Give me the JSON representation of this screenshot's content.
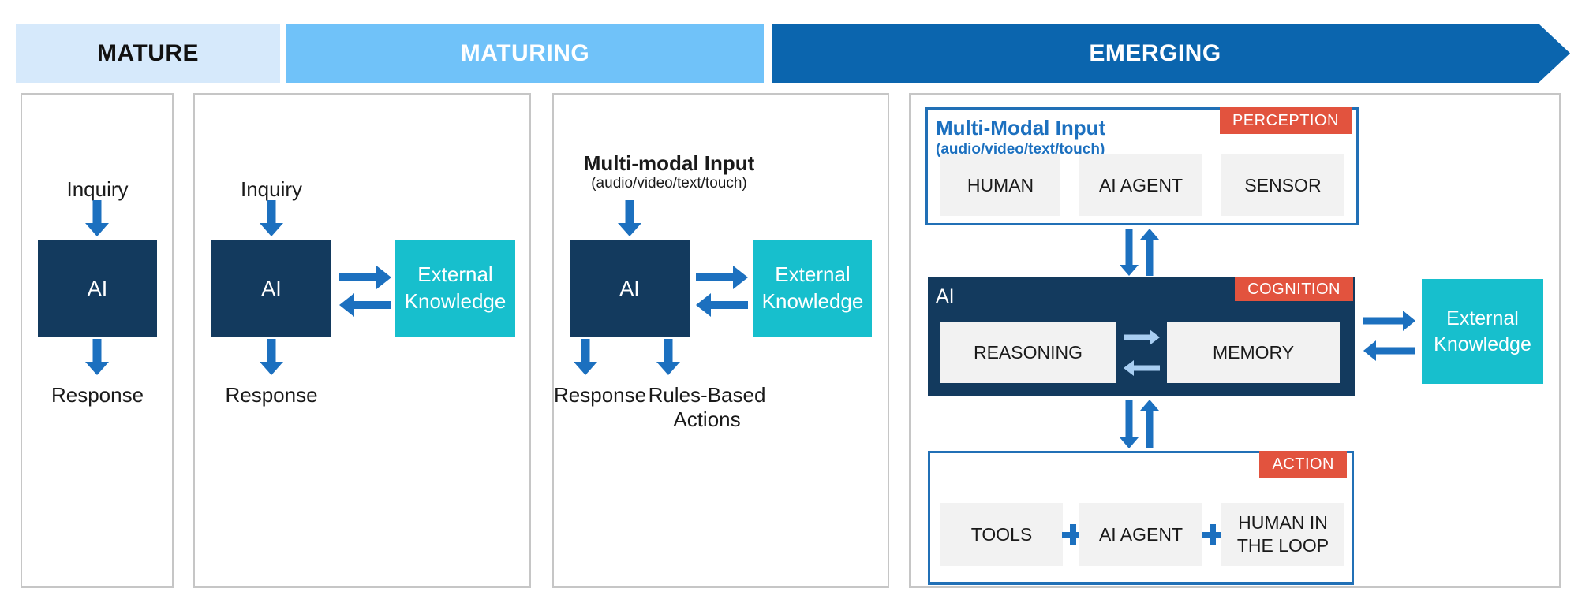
{
  "header": {
    "stages": [
      {
        "label": "MATURE"
      },
      {
        "label": "MATURING"
      },
      {
        "label": "EMERGING"
      }
    ]
  },
  "panels": {
    "mature": {
      "input": "Inquiry",
      "ai": "AI",
      "output": "Response"
    },
    "maturing_rag": {
      "input": "Inquiry",
      "ai": "AI",
      "external": "External Knowledge",
      "output": "Response"
    },
    "maturing_multimodal": {
      "input_title": "Multi-modal Input",
      "input_subtitle": "(audio/video/text/touch)",
      "ai": "AI",
      "external": "External Knowledge",
      "output_left": "Response",
      "output_right": "Rules-Based Actions"
    },
    "emerging": {
      "perception": {
        "title": "Multi-Modal Input",
        "subtitle": "(audio/video/text/touch)",
        "badge": "PERCEPTION",
        "items": [
          "HUMAN",
          "AI AGENT",
          "SENSOR"
        ]
      },
      "cognition": {
        "label": "AI",
        "badge": "COGNITION",
        "items": [
          "REASONING",
          "MEMORY"
        ]
      },
      "action": {
        "badge": "ACTION",
        "items": [
          "TOOLS",
          "AI AGENT",
          "HUMAN IN THE LOOP"
        ]
      },
      "external": "External Knowledge"
    }
  },
  "colors": {
    "stage_mature_bg": "#D6E9FB",
    "stage_maturing_bg": "#70C2F9",
    "stage_emerging_bg": "#0B65AE",
    "ai_box_bg": "#133A5E",
    "external_bg": "#17BFCD",
    "badge_bg": "#E2533E",
    "arrow_blue": "#1C70BF",
    "arrow_light_blue": "#A8CEF2",
    "section_border_blue": "#2170B6",
    "panel_border_gray": "#C6C6C6",
    "item_bg": "#F2F2F2",
    "title_blue": "#1C70BF"
  }
}
